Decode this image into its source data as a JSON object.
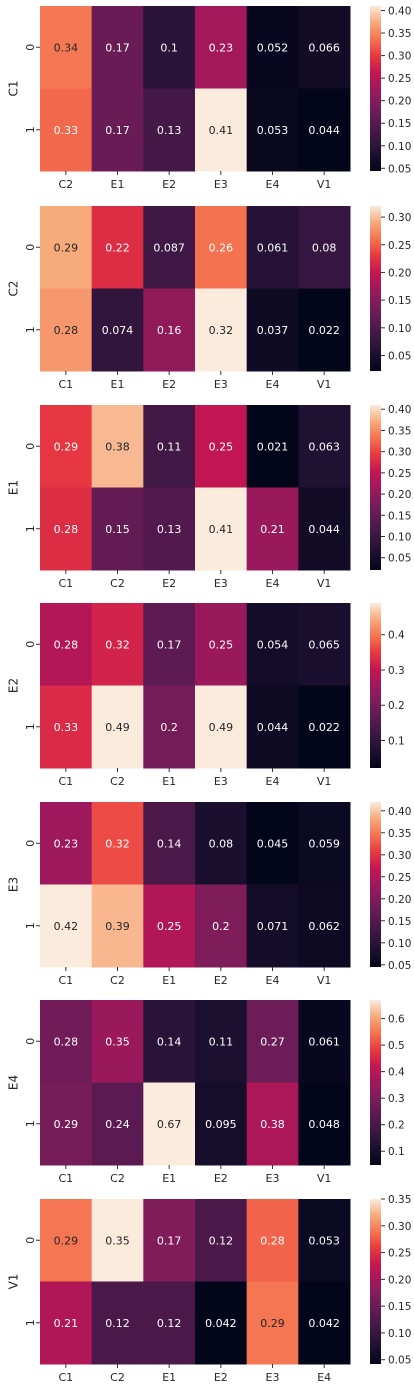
{
  "chart_data": [
    {
      "type": "heatmap",
      "ylabel": "C1",
      "x_tick_labels": [
        "C2",
        "E1",
        "E2",
        "E3",
        "E4",
        "V1"
      ],
      "y_tick_labels": [
        "0",
        "1"
      ],
      "values": [
        [
          0.34,
          0.17,
          0.1,
          0.23,
          0.052,
          0.066
        ],
        [
          0.33,
          0.17,
          0.13,
          0.41,
          0.053,
          0.044
        ]
      ],
      "color_range": [
        0.044,
        0.41
      ],
      "colorbar_ticks": [
        "0.05",
        "0.10",
        "0.15",
        "0.20",
        "0.25",
        "0.30",
        "0.35",
        "0.40"
      ]
    },
    {
      "type": "heatmap",
      "ylabel": "C2",
      "x_tick_labels": [
        "C1",
        "E1",
        "E2",
        "E3",
        "E4",
        "V1"
      ],
      "y_tick_labels": [
        "0",
        "1"
      ],
      "values": [
        [
          0.29,
          0.22,
          0.087,
          0.26,
          0.061,
          0.08
        ],
        [
          0.28,
          0.074,
          0.16,
          0.32,
          0.037,
          0.022
        ]
      ],
      "color_range": [
        0.022,
        0.32
      ],
      "colorbar_ticks": [
        "0.05",
        "0.10",
        "0.15",
        "0.20",
        "0.25",
        "0.30"
      ]
    },
    {
      "type": "heatmap",
      "ylabel": "E1",
      "x_tick_labels": [
        "C1",
        "C2",
        "E2",
        "E3",
        "E4",
        "V1"
      ],
      "y_tick_labels": [
        "0",
        "1"
      ],
      "values": [
        [
          0.29,
          0.38,
          0.11,
          0.25,
          0.021,
          0.063
        ],
        [
          0.28,
          0.15,
          0.13,
          0.41,
          0.21,
          0.044
        ]
      ],
      "color_range": [
        0.021,
        0.41
      ],
      "colorbar_ticks": [
        "0.05",
        "0.10",
        "0.15",
        "0.20",
        "0.25",
        "0.30",
        "0.35",
        "0.40"
      ]
    },
    {
      "type": "heatmap",
      "ylabel": "E2",
      "x_tick_labels": [
        "C1",
        "C2",
        "E1",
        "E3",
        "E4",
        "V1"
      ],
      "y_tick_labels": [
        "0",
        "1"
      ],
      "values": [
        [
          0.28,
          0.32,
          0.17,
          0.25,
          0.054,
          0.065
        ],
        [
          0.33,
          0.49,
          0.2,
          0.49,
          0.044,
          0.022
        ]
      ],
      "color_range": [
        0.022,
        0.49
      ],
      "colorbar_ticks": [
        "0.1",
        "0.2",
        "0.3",
        "0.4"
      ]
    },
    {
      "type": "heatmap",
      "ylabel": "E3",
      "x_tick_labels": [
        "C1",
        "C2",
        "E1",
        "E2",
        "E4",
        "V1"
      ],
      "y_tick_labels": [
        "0",
        "1"
      ],
      "values": [
        [
          0.23,
          0.32,
          0.14,
          0.08,
          0.045,
          0.059
        ],
        [
          0.42,
          0.39,
          0.25,
          0.2,
          0.071,
          0.062
        ]
      ],
      "color_range": [
        0.045,
        0.42
      ],
      "colorbar_ticks": [
        "0.05",
        "0.10",
        "0.15",
        "0.20",
        "0.25",
        "0.30",
        "0.35",
        "0.40"
      ]
    },
    {
      "type": "heatmap",
      "ylabel": "E4",
      "x_tick_labels": [
        "C1",
        "C2",
        "E1",
        "E2",
        "E3",
        "V1"
      ],
      "y_tick_labels": [
        "0",
        "1"
      ],
      "values": [
        [
          0.28,
          0.35,
          0.14,
          0.11,
          0.27,
          0.061
        ],
        [
          0.29,
          0.24,
          0.67,
          0.095,
          0.38,
          0.048
        ]
      ],
      "color_range": [
        0.048,
        0.67
      ],
      "colorbar_ticks": [
        "0.1",
        "0.2",
        "0.3",
        "0.4",
        "0.5",
        "0.6"
      ]
    },
    {
      "type": "heatmap",
      "ylabel": "V1",
      "x_tick_labels": [
        "C1",
        "C2",
        "E1",
        "E2",
        "E3",
        "E4"
      ],
      "y_tick_labels": [
        "0",
        "1"
      ],
      "values": [
        [
          0.29,
          0.35,
          0.17,
          0.12,
          0.28,
          0.053
        ],
        [
          0.21,
          0.12,
          0.12,
          0.042,
          0.29,
          0.042
        ]
      ],
      "color_range": [
        0.042,
        0.35
      ],
      "colorbar_ticks": [
        "0.05",
        "0.10",
        "0.15",
        "0.20",
        "0.25",
        "0.30",
        "0.35"
      ]
    }
  ]
}
